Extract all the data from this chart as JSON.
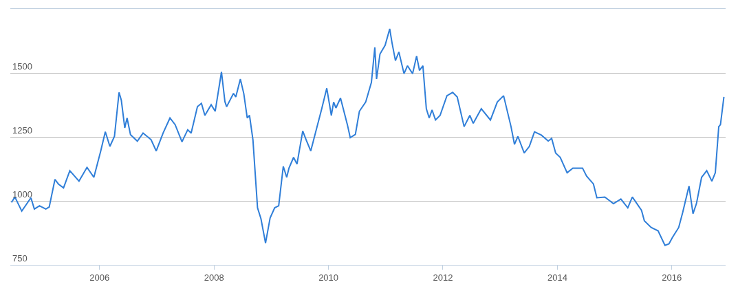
{
  "chart_data": {
    "type": "line",
    "x": [
      2004.46,
      2004.52,
      2004.64,
      2004.8,
      2004.86,
      2004.95,
      2005.06,
      2005.12,
      2005.22,
      2005.28,
      2005.37,
      2005.48,
      2005.64,
      2005.78,
      2005.9,
      2006.02,
      2006.1,
      2006.18,
      2006.26,
      2006.34,
      2006.38,
      2006.44,
      2006.48,
      2006.54,
      2006.66,
      2006.76,
      2006.9,
      2006.99,
      2007.11,
      2007.23,
      2007.32,
      2007.44,
      2007.54,
      2007.6,
      2007.71,
      2007.78,
      2007.84,
      2007.95,
      2008.02,
      2008.13,
      2008.19,
      2008.22,
      2008.34,
      2008.38,
      2008.46,
      2008.52,
      2008.58,
      2008.62,
      2008.68,
      2008.76,
      2008.82,
      2008.9,
      2008.98,
      2009.06,
      2009.13,
      2009.21,
      2009.27,
      2009.31,
      2009.39,
      2009.45,
      2009.55,
      2009.61,
      2009.69,
      2009.79,
      2009.88,
      2009.97,
      2010.05,
      2010.09,
      2010.13,
      2010.21,
      2010.33,
      2010.38,
      2010.47,
      2010.54,
      2010.65,
      2010.75,
      2010.81,
      2010.84,
      2010.9,
      2010.99,
      2011.07,
      2011.11,
      2011.17,
      2011.23,
      2011.32,
      2011.38,
      2011.47,
      2011.54,
      2011.59,
      2011.65,
      2011.71,
      2011.76,
      2011.81,
      2011.87,
      2011.95,
      2012.07,
      2012.17,
      2012.25,
      2012.37,
      2012.47,
      2012.53,
      2012.67,
      2012.83,
      2012.95,
      2013.06,
      2013.19,
      2013.25,
      2013.31,
      2013.42,
      2013.51,
      2013.6,
      2013.72,
      2013.84,
      2013.9,
      2013.97,
      2014.05,
      2014.17,
      2014.27,
      2014.44,
      2014.51,
      2014.63,
      2014.69,
      2014.83,
      2014.98,
      2015.11,
      2015.23,
      2015.31,
      2015.47,
      2015.52,
      2015.64,
      2015.76,
      2015.88,
      2015.95,
      2016.01,
      2016.12,
      2016.19,
      2016.3,
      2016.37,
      2016.43,
      2016.52,
      2016.61,
      2016.7,
      2016.76,
      2016.82,
      2016.85,
      2016.91
    ],
    "series": [
      {
        "color": "#2f7ed8",
        "values": [
          994,
          1015,
          960,
          1012,
          968,
          981,
          968,
          976,
          1084,
          1066,
          1051,
          1118,
          1077,
          1131,
          1092,
          1195,
          1270,
          1213,
          1252,
          1424,
          1393,
          1285,
          1324,
          1259,
          1233,
          1265,
          1239,
          1195,
          1265,
          1324,
          1298,
          1231,
          1278,
          1265,
          1368,
          1381,
          1334,
          1376,
          1350,
          1504,
          1388,
          1368,
          1420,
          1406,
          1476,
          1419,
          1324,
          1334,
          1238,
          973,
          930,
          835,
          933,
          973,
          981,
          1135,
          1092,
          1128,
          1170,
          1144,
          1273,
          1238,
          1195,
          1281,
          1358,
          1440,
          1334,
          1386,
          1363,
          1402,
          1298,
          1247,
          1260,
          1350,
          1386,
          1463,
          1600,
          1476,
          1574,
          1608,
          1672,
          1618,
          1548,
          1582,
          1497,
          1528,
          1497,
          1566,
          1510,
          1528,
          1360,
          1324,
          1355,
          1316,
          1334,
          1411,
          1424,
          1406,
          1290,
          1334,
          1303,
          1360,
          1316,
          1386,
          1411,
          1290,
          1221,
          1252,
          1187,
          1213,
          1270,
          1257,
          1234,
          1244,
          1187,
          1170,
          1110,
          1128,
          1128,
          1097,
          1066,
          1012,
          1015,
          989,
          1007,
          973,
          1015,
          963,
          922,
          896,
          883,
          826,
          832,
          857,
          896,
          955,
          1058,
          950,
          989,
          1092,
          1118,
          1077,
          1110,
          1290,
          1298,
          1406
        ]
      }
    ],
    "xlim": [
      2004.44,
      2016.94
    ],
    "xticks": [
      2006,
      2008,
      2010,
      2012,
      2014,
      2016
    ],
    "ylim": [
      750,
      1750
    ],
    "yticks": [
      750,
      1000,
      1250,
      1500
    ],
    "grid": "y",
    "marker": "none",
    "line_style": "solid"
  }
}
